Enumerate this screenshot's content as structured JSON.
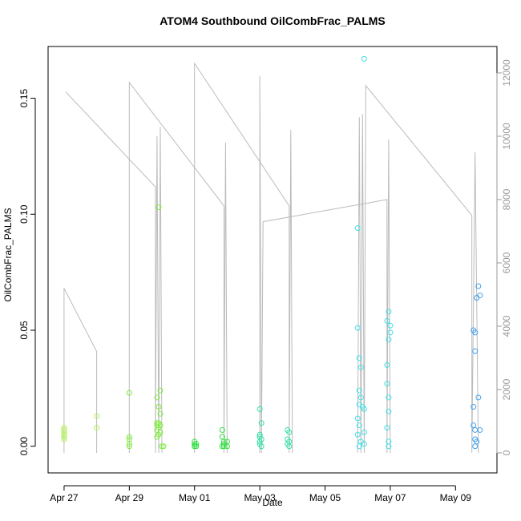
{
  "chart_data": {
    "type": "scatter",
    "title": "ATOM4 Southbound OilCombFrac_PALMS",
    "x_label": "Date",
    "y_label": "OilCombFrac_PALMS",
    "xlim": [
      26.51,
      40.27
    ],
    "xticks": [
      {
        "value": 27,
        "label": "Apr 27"
      },
      {
        "value": 29,
        "label": "Apr 29"
      },
      {
        "value": 31,
        "label": "May 01"
      },
      {
        "value": 33,
        "label": "May 03"
      },
      {
        "value": 35,
        "label": "May 05"
      },
      {
        "value": 37,
        "label": "May 07"
      },
      {
        "value": 39,
        "label": "May 09"
      }
    ],
    "ylim": [
      -0.0115,
      0.1723
    ],
    "yticks": [
      {
        "value": 0,
        "label": "0.00"
      },
      {
        "value": 0.05,
        "label": "0.05"
      },
      {
        "value": 0.1,
        "label": "0.10"
      },
      {
        "value": 0.15,
        "label": "0.15"
      }
    ],
    "y2lim": [
      -633,
      12835
    ],
    "y2ticks": [
      0,
      2000,
      4000,
      6000,
      8000,
      10000,
      12000
    ],
    "series": [
      {
        "color": "#bbbbbb",
        "axis": "y2",
        "mode": "line",
        "x": [
          27.0,
          27.0,
          28.0,
          28.0,
          28.0,
          27.05,
          29.8,
          29.8,
          29.85,
          29.9,
          29.95,
          30.0,
          30.0,
          29.0,
          29.0,
          31.9,
          31.9,
          31.95,
          32.0,
          32.0,
          31.0,
          31.0,
          33.9,
          33.9,
          33.95,
          34.0,
          34.0,
          33.0,
          33.0,
          33.05,
          33.1,
          36.9,
          36.9,
          36.95,
          37.0,
          37.0,
          36.0,
          36.05,
          36.1,
          36.15,
          36.2,
          36.25,
          39.5,
          39.5,
          39.6,
          39.7
        ],
        "values": [
          0,
          5200,
          3200,
          0,
          null,
          11400,
          8400,
          0,
          10000,
          0,
          10300,
          0,
          null,
          0,
          11700,
          7800,
          0,
          9800,
          0,
          null,
          0,
          12300,
          7800,
          0,
          10200,
          0,
          null,
          0,
          11900,
          0,
          7300,
          8000,
          0,
          9900,
          0,
          null,
          0,
          10600,
          0,
          10700,
          0,
          11600,
          7500,
          0,
          9500,
          0
        ]
      },
      {
        "color": "#b0f050",
        "mode": "points",
        "x": [
          27.0,
          27.0,
          27.0,
          27.0,
          27.0,
          27.0,
          28.0,
          28.0
        ],
        "values": [
          0.008,
          0.007,
          0.006,
          0.005,
          0.004,
          0.003,
          0.013,
          0.008
        ]
      },
      {
        "color": "#80ec40",
        "mode": "points",
        "x": [
          29.0,
          29.0,
          29.0,
          29.0,
          29.0,
          29.9,
          29.95,
          29.85,
          29.9,
          29.95,
          29.85,
          29.9,
          29.95,
          29.85,
          29.9,
          29.85,
          29.95,
          29.9,
          29.85,
          30.0,
          30.05
        ],
        "values": [
          0.023,
          0.004,
          0.003,
          0.001,
          0.0,
          0.103,
          0.024,
          0.021,
          0.017,
          0.014,
          0.01,
          0.01,
          0.009,
          0.009,
          0.008,
          0.007,
          0.006,
          0.005,
          0.004,
          0.0,
          0.0
        ]
      },
      {
        "color": "#30e040",
        "mode": "points",
        "x": [
          31.0,
          31.0,
          31.05,
          31.0,
          31.05,
          31.0,
          31.85,
          31.85,
          31.9,
          31.9,
          31.85,
          31.9,
          32.0,
          32.0
        ],
        "values": [
          0.002,
          0.001,
          0.001,
          0.0,
          0.0,
          0.0,
          0.007,
          0.004,
          0.002,
          0.001,
          0.0,
          0.0,
          0.0,
          0.002
        ]
      },
      {
        "color": "#30e0a8",
        "mode": "points",
        "x": [
          33.0,
          33.05,
          33.0,
          33.0,
          33.05,
          33.0,
          33.0,
          33.05,
          33.85,
          33.9,
          33.85,
          33.9,
          33.85,
          33.9
        ],
        "values": [
          0.016,
          0.01,
          0.005,
          0.004,
          0.003,
          0.002,
          0.001,
          0.0,
          0.007,
          0.006,
          0.003,
          0.002,
          0.001,
          0.0
        ]
      },
      {
        "color": "#40e0e8",
        "mode": "points",
        "x": [
          36.2,
          36.0,
          36.0,
          36.05,
          36.1,
          36.05,
          36.1,
          36.05,
          36.15,
          36.2,
          36.0,
          36.05,
          36.2,
          36.0,
          36.1,
          36.2,
          36.05,
          36.95,
          36.9,
          37.0,
          37.0,
          36.95,
          36.9,
          36.9,
          36.95,
          36.95,
          36.9,
          36.95,
          36.95
        ],
        "values": [
          0.167,
          0.094,
          0.051,
          0.038,
          0.034,
          0.024,
          0.021,
          0.018,
          0.017,
          0.016,
          0.012,
          0.009,
          0.006,
          0.005,
          0.002,
          0.001,
          0.0,
          0.058,
          0.054,
          0.052,
          0.049,
          0.046,
          0.035,
          0.027,
          0.021,
          0.015,
          0.008,
          0.002,
          0.0
        ]
      },
      {
        "color": "#40a0f0",
        "mode": "points",
        "x": [
          39.7,
          39.75,
          39.65,
          39.55,
          39.6,
          39.6,
          39.7,
          39.55,
          39.55,
          39.6,
          39.75,
          39.6,
          39.65,
          39.6
        ],
        "values": [
          0.069,
          0.065,
          0.064,
          0.05,
          0.049,
          0.041,
          0.021,
          0.017,
          0.009,
          0.007,
          0.007,
          0.003,
          0.002,
          0.0
        ]
      }
    ]
  }
}
